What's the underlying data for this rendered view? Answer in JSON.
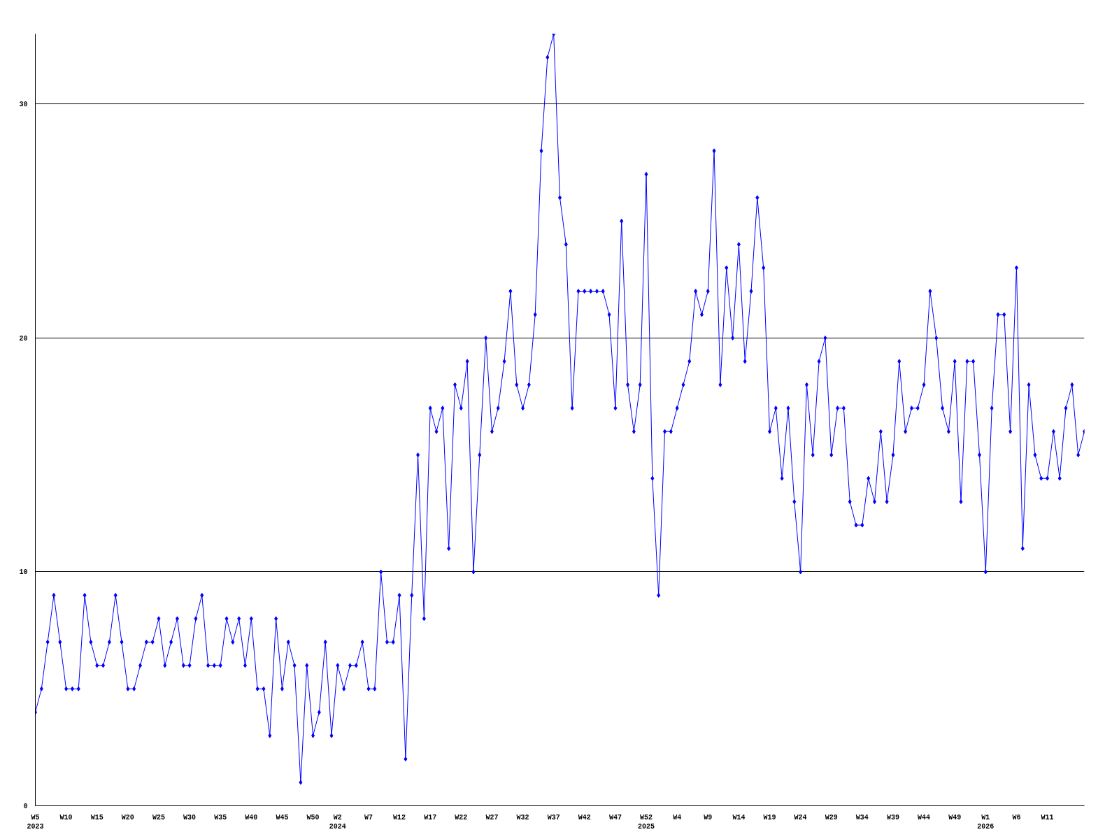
{
  "chart_data": {
    "type": "line",
    "categories": [
      "W5\n2023",
      null,
      null,
      null,
      null,
      "W10",
      null,
      null,
      null,
      null,
      "W15",
      null,
      null,
      null,
      null,
      "W20",
      null,
      null,
      null,
      null,
      "W25",
      null,
      null,
      null,
      null,
      "W30",
      null,
      null,
      null,
      null,
      "W35",
      null,
      null,
      null,
      null,
      "W40",
      null,
      null,
      null,
      null,
      "W45",
      null,
      null,
      null,
      null,
      "W50",
      null,
      null,
      null,
      "W2\n2024",
      null,
      null,
      null,
      null,
      "W7",
      null,
      null,
      null,
      null,
      "W12",
      null,
      null,
      null,
      null,
      "W17",
      null,
      null,
      null,
      null,
      "W22",
      null,
      null,
      null,
      null,
      "W27",
      null,
      null,
      null,
      null,
      "W32",
      null,
      null,
      null,
      null,
      "W37",
      null,
      null,
      null,
      null,
      "W42",
      null,
      null,
      null,
      null,
      "W47",
      null,
      null,
      null,
      null,
      "W52\n2025",
      null,
      null,
      null,
      null,
      "W4",
      null,
      null,
      null,
      null,
      "W9",
      null,
      null,
      null,
      null,
      "W14",
      null,
      null,
      null,
      null,
      "W19",
      null,
      null,
      null,
      null,
      "W24",
      null,
      null,
      null,
      null,
      "W29",
      null,
      null,
      null,
      null,
      "W34",
      null,
      null,
      null,
      null,
      "W39",
      null,
      null,
      null,
      null,
      "W44",
      null,
      null,
      null,
      null,
      "W49",
      null,
      null,
      null,
      null,
      "W1\n2026",
      null,
      null,
      null,
      null,
      "W6",
      null,
      null,
      null,
      null,
      "W11",
      null,
      null,
      null,
      null,
      null,
      null
    ],
    "series": [
      {
        "color": "#0000ff",
        "values": [
          4,
          5,
          7,
          9,
          7,
          5,
          5,
          5,
          9,
          7,
          6,
          6,
          7,
          9,
          7,
          5,
          5,
          6,
          7,
          7,
          8,
          6,
          7,
          8,
          6,
          6,
          8,
          9,
          6,
          6,
          6,
          8,
          7,
          8,
          6,
          8,
          5,
          5,
          3,
          8,
          5,
          7,
          6,
          1,
          6,
          3,
          4,
          7,
          3,
          6,
          5,
          6,
          6,
          7,
          5,
          5,
          10,
          7,
          7,
          9,
          2,
          9,
          15,
          8,
          17,
          16,
          17,
          11,
          18,
          17,
          19,
          10,
          15,
          20,
          16,
          17,
          19,
          22,
          18,
          17,
          18,
          21,
          28,
          32,
          33,
          26,
          24,
          17,
          22,
          22,
          22,
          22,
          22,
          21,
          17,
          25,
          18,
          16,
          18,
          27,
          14,
          9,
          16,
          16,
          17,
          18,
          19,
          22,
          21,
          22,
          28,
          18,
          23,
          20,
          24,
          19,
          22,
          26,
          23,
          16,
          17,
          14,
          17,
          13,
          10,
          18,
          15,
          19,
          20,
          15,
          17,
          17,
          13,
          12,
          12,
          14,
          13,
          16,
          13,
          15,
          19,
          16,
          17,
          17,
          18,
          22,
          20,
          17,
          16,
          19,
          13,
          19,
          19,
          15,
          10,
          17,
          21,
          21,
          16,
          23,
          11,
          18,
          15,
          14,
          14,
          16,
          14,
          17,
          18,
          15,
          16
        ]
      }
    ],
    "ylim": [
      0,
      33
    ],
    "yticks": [
      0,
      10,
      20,
      30
    ],
    "grid": "y",
    "marker": "diamond",
    "line_style": "solid"
  }
}
